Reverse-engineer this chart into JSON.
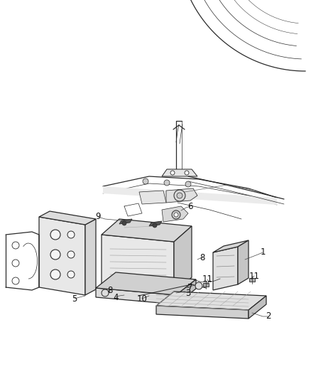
{
  "bg_color": "#ffffff",
  "line_color": "#2a2a2a",
  "fig_width": 4.38,
  "fig_height": 5.33,
  "dpi": 100,
  "lw_main": 0.9,
  "lw_thin": 0.5,
  "lw_body": 0.7
}
